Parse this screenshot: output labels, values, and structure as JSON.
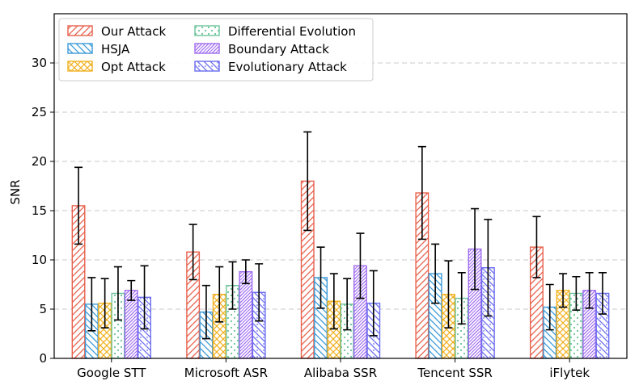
{
  "chart_data": {
    "type": "bar",
    "title": "",
    "xlabel": "",
    "ylabel": "SNR",
    "ylim": [
      0,
      35
    ],
    "yticks": [
      0,
      5,
      10,
      15,
      20,
      25,
      30
    ],
    "grid": "horizontal-dashed",
    "legend_position": "top-left",
    "categories": [
      "Google STT",
      "Microsoft ASR",
      "Alibaba SSR",
      "Tencent SSR",
      "iFlytek"
    ],
    "series": [
      {
        "name": "Our Attack",
        "color": "#e8604c",
        "pattern": "diagonal-up",
        "values": [
          15.5,
          10.8,
          18.0,
          16.8,
          11.3
        ],
        "errors": [
          3.9,
          2.8,
          5.0,
          4.7,
          3.1
        ]
      },
      {
        "name": "HSJA",
        "color": "#3a9ad9",
        "pattern": "diagonal-down",
        "values": [
          5.5,
          4.7,
          8.2,
          8.6,
          5.2
        ],
        "errors": [
          2.7,
          2.7,
          3.1,
          3.0,
          2.3
        ]
      },
      {
        "name": "Opt Attack",
        "color": "#f2b01e",
        "pattern": "cross",
        "values": [
          5.6,
          6.5,
          5.8,
          6.5,
          6.9
        ],
        "errors": [
          2.5,
          2.8,
          2.8,
          3.4,
          1.7
        ]
      },
      {
        "name": "Differential Evolution",
        "color": "#6bc49a",
        "pattern": "dots",
        "values": [
          6.6,
          7.4,
          5.5,
          6.1,
          6.6
        ],
        "errors": [
          2.7,
          2.4,
          2.6,
          2.6,
          1.7
        ]
      },
      {
        "name": "Boundary Attack",
        "color": "#a06cf0",
        "pattern": "diagonal-up-dense",
        "values": [
          6.9,
          8.8,
          9.4,
          11.1,
          6.9
        ],
        "errors": [
          1.0,
          1.2,
          3.3,
          4.1,
          1.8
        ]
      },
      {
        "name": "Evolutionary Attack",
        "color": "#6a6cf0",
        "pattern": "diagonal-down-dots",
        "values": [
          6.2,
          6.7,
          5.6,
          9.2,
          6.6
        ],
        "errors": [
          3.2,
          2.9,
          3.3,
          4.9,
          2.1
        ]
      }
    ]
  }
}
